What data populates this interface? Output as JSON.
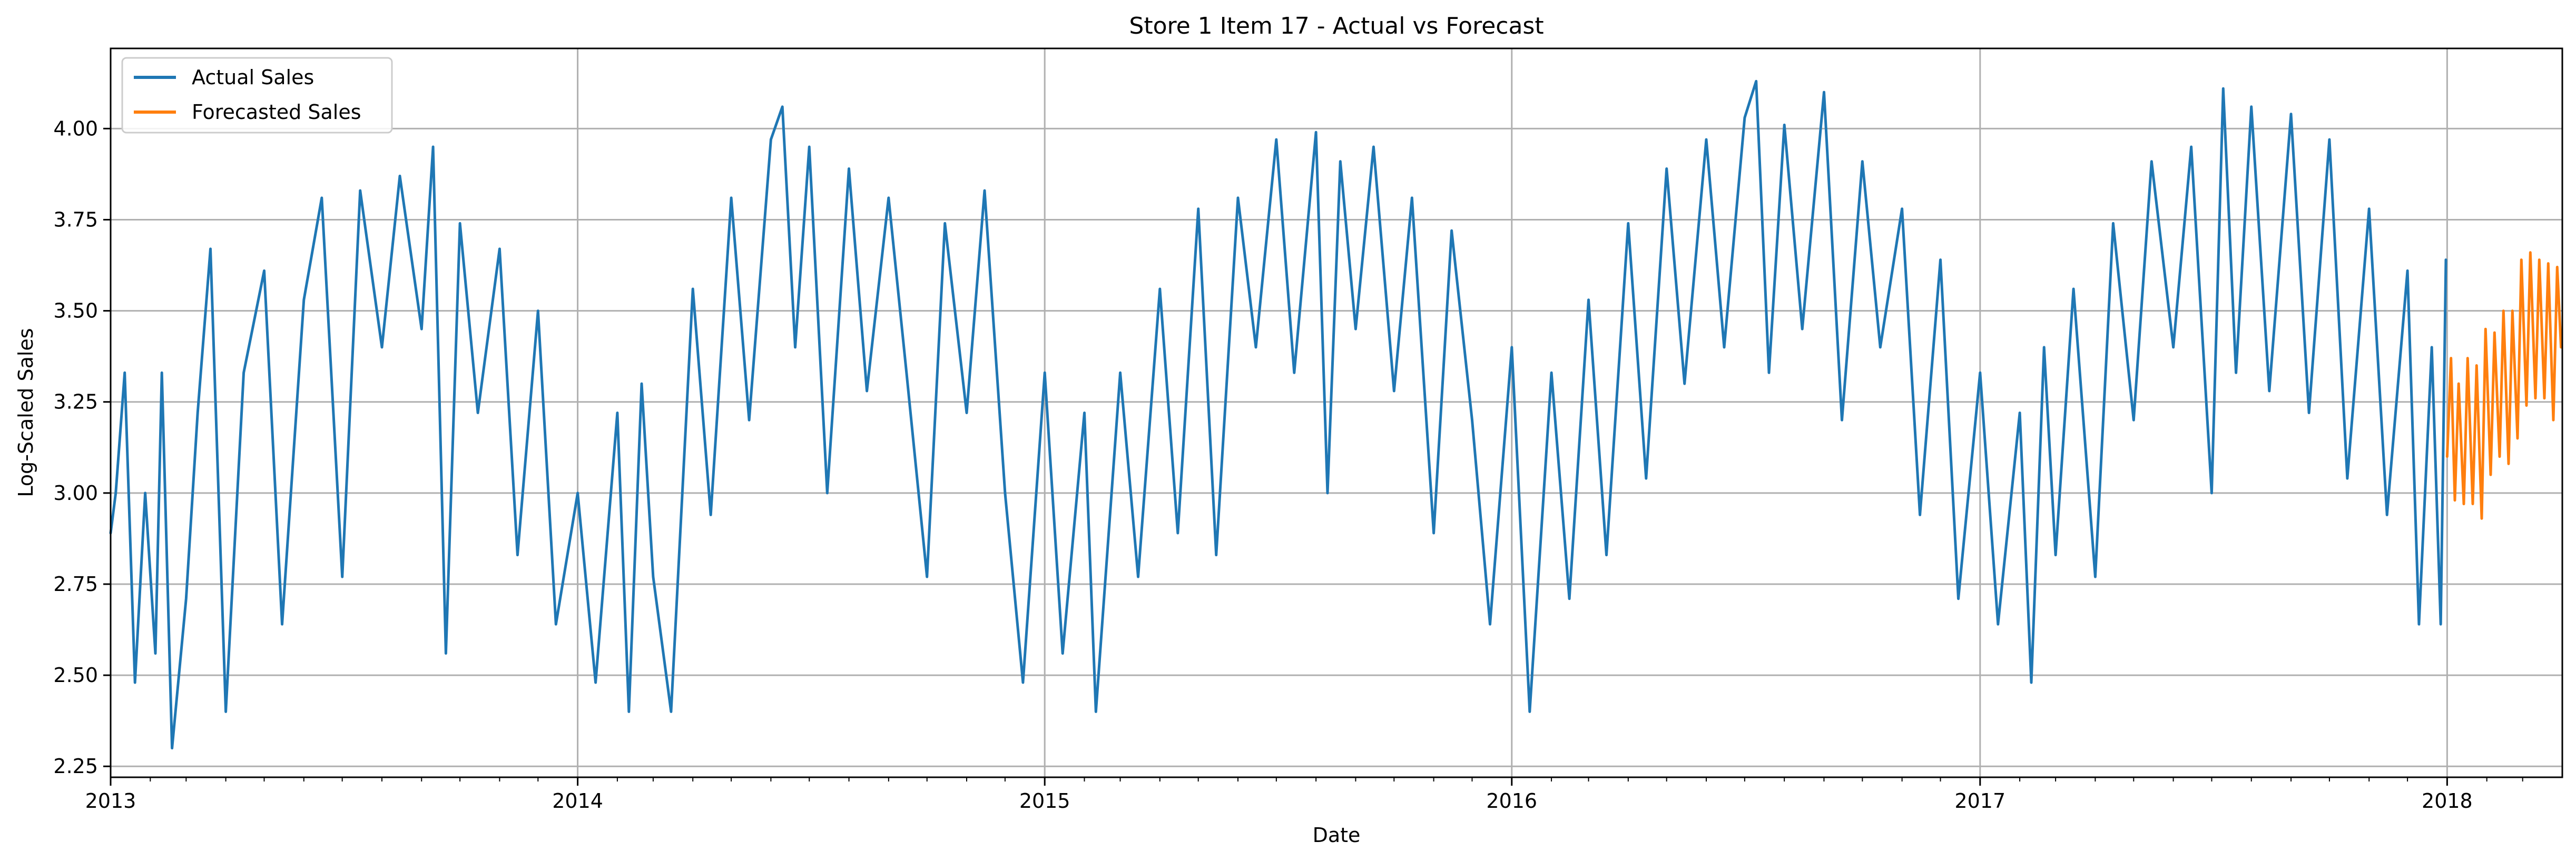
{
  "chart_data": {
    "type": "line",
    "title": "Store 1 Item 17 - Actual vs Forecast",
    "xlabel": "Date",
    "ylabel": "Log-Scaled Sales",
    "x_range": [
      "2013-01-01",
      "2018-03-31"
    ],
    "ylim": [
      2.22,
      4.22
    ],
    "x_ticks": [
      {
        "date": "2013-01-01",
        "label": "2013"
      },
      {
        "date": "2014-01-01",
        "label": "2014"
      },
      {
        "date": "2015-01-01",
        "label": "2015"
      },
      {
        "date": "2016-01-01",
        "label": "2016"
      },
      {
        "date": "2017-01-01",
        "label": "2017"
      },
      {
        "date": "2018-01-01",
        "label": "2018"
      }
    ],
    "y_ticks": [
      "2.25",
      "2.50",
      "2.75",
      "3.00",
      "3.25",
      "3.50",
      "3.75",
      "4.00"
    ],
    "grid": true,
    "legend_position": "top-left",
    "series": [
      {
        "name": "Actual Sales",
        "color": "#1f77b4",
        "points": [
          [
            "2013-01-01",
            2.89
          ],
          [
            "2013-01-05",
            3.0
          ],
          [
            "2013-01-12",
            3.33
          ],
          [
            "2013-01-20",
            2.48
          ],
          [
            "2013-01-28",
            3.0
          ],
          [
            "2013-02-05",
            2.56
          ],
          [
            "2013-02-10",
            3.33
          ],
          [
            "2013-02-18",
            2.3
          ],
          [
            "2013-03-01",
            2.71
          ],
          [
            "2013-03-10",
            3.22
          ],
          [
            "2013-03-20",
            3.67
          ],
          [
            "2013-04-01",
            2.4
          ],
          [
            "2013-04-15",
            3.33
          ],
          [
            "2013-05-01",
            3.61
          ],
          [
            "2013-05-15",
            2.64
          ],
          [
            "2013-06-01",
            3.53
          ],
          [
            "2013-06-15",
            3.81
          ],
          [
            "2013-07-01",
            2.77
          ],
          [
            "2013-07-15",
            3.83
          ],
          [
            "2013-08-01",
            3.4
          ],
          [
            "2013-08-15",
            3.87
          ],
          [
            "2013-09-01",
            3.45
          ],
          [
            "2013-09-10",
            3.95
          ],
          [
            "2013-09-20",
            2.56
          ],
          [
            "2013-10-01",
            3.74
          ],
          [
            "2013-10-15",
            3.22
          ],
          [
            "2013-11-01",
            3.67
          ],
          [
            "2013-11-15",
            2.83
          ],
          [
            "2013-12-01",
            3.5
          ],
          [
            "2013-12-15",
            2.64
          ],
          [
            "2014-01-01",
            3.0
          ],
          [
            "2014-01-15",
            2.48
          ],
          [
            "2014-02-01",
            3.22
          ],
          [
            "2014-02-10",
            2.4
          ],
          [
            "2014-02-20",
            3.3
          ],
          [
            "2014-03-01",
            2.77
          ],
          [
            "2014-03-15",
            2.4
          ],
          [
            "2014-04-01",
            3.56
          ],
          [
            "2014-04-15",
            2.94
          ],
          [
            "2014-05-01",
            3.81
          ],
          [
            "2014-05-15",
            3.2
          ],
          [
            "2014-06-01",
            3.97
          ],
          [
            "2014-06-10",
            4.06
          ],
          [
            "2014-06-20",
            3.4
          ],
          [
            "2014-07-01",
            3.95
          ],
          [
            "2014-07-15",
            3.0
          ],
          [
            "2014-08-01",
            3.89
          ],
          [
            "2014-08-15",
            3.28
          ],
          [
            "2014-09-01",
            3.81
          ],
          [
            "2014-09-15",
            3.33
          ],
          [
            "2014-10-01",
            2.77
          ],
          [
            "2014-10-15",
            3.74
          ],
          [
            "2014-11-01",
            3.22
          ],
          [
            "2014-11-15",
            3.83
          ],
          [
            "2014-12-01",
            3.0
          ],
          [
            "2014-12-15",
            2.48
          ],
          [
            "2015-01-01",
            3.33
          ],
          [
            "2015-01-15",
            2.56
          ],
          [
            "2015-02-01",
            3.22
          ],
          [
            "2015-02-10",
            2.4
          ],
          [
            "2015-03-01",
            3.33
          ],
          [
            "2015-03-15",
            2.77
          ],
          [
            "2015-04-01",
            3.56
          ],
          [
            "2015-04-15",
            2.89
          ],
          [
            "2015-05-01",
            3.78
          ],
          [
            "2015-05-15",
            2.83
          ],
          [
            "2015-06-01",
            3.81
          ],
          [
            "2015-06-15",
            3.4
          ],
          [
            "2015-07-01",
            3.97
          ],
          [
            "2015-07-15",
            3.33
          ],
          [
            "2015-08-01",
            3.99
          ],
          [
            "2015-08-10",
            3.0
          ],
          [
            "2015-08-20",
            3.91
          ],
          [
            "2015-09-01",
            3.45
          ],
          [
            "2015-09-15",
            3.95
          ],
          [
            "2015-10-01",
            3.28
          ],
          [
            "2015-10-15",
            3.81
          ],
          [
            "2015-11-01",
            2.89
          ],
          [
            "2015-11-15",
            3.72
          ],
          [
            "2015-12-01",
            3.2
          ],
          [
            "2015-12-15",
            2.64
          ],
          [
            "2016-01-01",
            3.4
          ],
          [
            "2016-01-15",
            2.4
          ],
          [
            "2016-02-01",
            3.33
          ],
          [
            "2016-02-15",
            2.71
          ],
          [
            "2016-03-01",
            3.53
          ],
          [
            "2016-03-15",
            2.83
          ],
          [
            "2016-04-01",
            3.74
          ],
          [
            "2016-04-15",
            3.04
          ],
          [
            "2016-05-01",
            3.89
          ],
          [
            "2016-05-15",
            3.3
          ],
          [
            "2016-06-01",
            3.97
          ],
          [
            "2016-06-15",
            3.4
          ],
          [
            "2016-07-01",
            4.03
          ],
          [
            "2016-07-10",
            4.13
          ],
          [
            "2016-07-20",
            3.33
          ],
          [
            "2016-08-01",
            4.01
          ],
          [
            "2016-08-15",
            3.45
          ],
          [
            "2016-09-01",
            4.1
          ],
          [
            "2016-09-15",
            3.2
          ],
          [
            "2016-10-01",
            3.91
          ],
          [
            "2016-10-15",
            3.4
          ],
          [
            "2016-11-01",
            3.78
          ],
          [
            "2016-11-15",
            2.94
          ],
          [
            "2016-12-01",
            3.64
          ],
          [
            "2016-12-15",
            2.71
          ],
          [
            "2017-01-01",
            3.33
          ],
          [
            "2017-01-15",
            2.64
          ],
          [
            "2017-02-01",
            3.22
          ],
          [
            "2017-02-10",
            2.48
          ],
          [
            "2017-02-20",
            3.4
          ],
          [
            "2017-03-01",
            2.83
          ],
          [
            "2017-03-15",
            3.56
          ],
          [
            "2017-04-01",
            2.77
          ],
          [
            "2017-04-15",
            3.74
          ],
          [
            "2017-05-01",
            3.2
          ],
          [
            "2017-05-15",
            3.91
          ],
          [
            "2017-06-01",
            3.4
          ],
          [
            "2017-06-15",
            3.95
          ],
          [
            "2017-07-01",
            3.0
          ],
          [
            "2017-07-10",
            4.11
          ],
          [
            "2017-07-20",
            3.33
          ],
          [
            "2017-08-01",
            4.06
          ],
          [
            "2017-08-15",
            3.28
          ],
          [
            "2017-09-01",
            4.04
          ],
          [
            "2017-09-15",
            3.22
          ],
          [
            "2017-10-01",
            3.97
          ],
          [
            "2017-10-15",
            3.04
          ],
          [
            "2017-11-01",
            3.78
          ],
          [
            "2017-11-15",
            2.94
          ],
          [
            "2017-12-01",
            3.61
          ],
          [
            "2017-12-10",
            2.64
          ],
          [
            "2017-12-20",
            3.4
          ],
          [
            "2017-12-27",
            2.64
          ],
          [
            "2017-12-31",
            3.64
          ]
        ]
      },
      {
        "name": "Forecasted Sales",
        "color": "#ff7f0e",
        "points": [
          [
            "2018-01-01",
            3.1
          ],
          [
            "2018-01-04",
            3.37
          ],
          [
            "2018-01-07",
            2.98
          ],
          [
            "2018-01-10",
            3.3
          ],
          [
            "2018-01-14",
            2.97
          ],
          [
            "2018-01-17",
            3.37
          ],
          [
            "2018-01-21",
            2.97
          ],
          [
            "2018-01-24",
            3.35
          ],
          [
            "2018-01-28",
            2.93
          ],
          [
            "2018-01-31",
            3.45
          ],
          [
            "2018-02-04",
            3.05
          ],
          [
            "2018-02-07",
            3.44
          ],
          [
            "2018-02-11",
            3.1
          ],
          [
            "2018-02-14",
            3.5
          ],
          [
            "2018-02-18",
            3.08
          ],
          [
            "2018-02-21",
            3.5
          ],
          [
            "2018-02-25",
            3.15
          ],
          [
            "2018-02-28",
            3.64
          ],
          [
            "2018-03-04",
            3.24
          ],
          [
            "2018-03-07",
            3.66
          ],
          [
            "2018-03-11",
            3.26
          ],
          [
            "2018-03-14",
            3.64
          ],
          [
            "2018-03-18",
            3.26
          ],
          [
            "2018-03-21",
            3.63
          ],
          [
            "2018-03-25",
            3.2
          ],
          [
            "2018-03-28",
            3.62
          ],
          [
            "2018-03-31",
            3.4
          ]
        ]
      }
    ]
  }
}
